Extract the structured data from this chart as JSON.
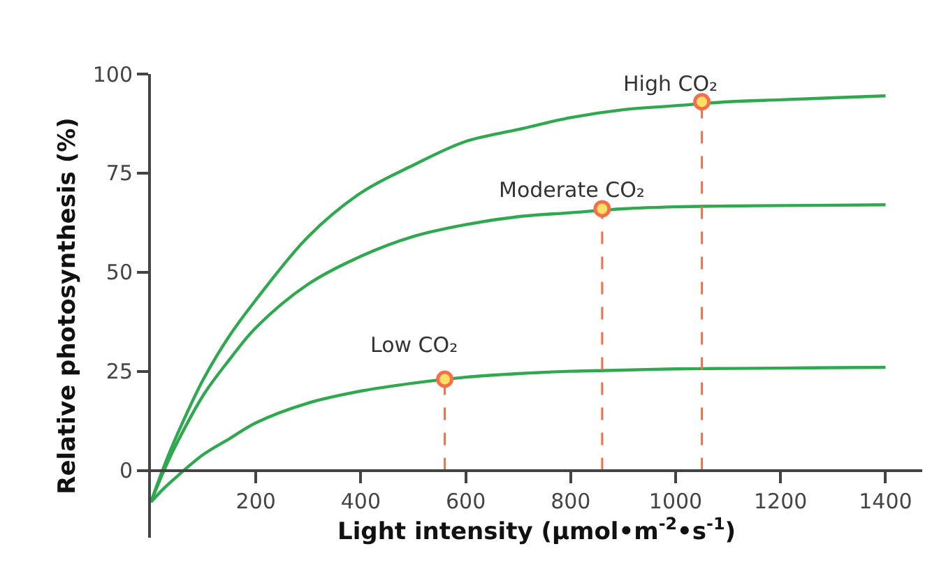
{
  "chart_data": {
    "type": "line",
    "xlabel": "Light intensity (µmol•m$^{-2}$•s$^{-1}$)",
    "ylabel": "Relative photosynthesis (%)",
    "xlim": [
      0,
      1470
    ],
    "ylim": [
      -17,
      100
    ],
    "xticks": [
      200,
      400,
      600,
      800,
      1000,
      1200,
      1400
    ],
    "yticks": [
      0,
      25,
      50,
      75,
      100
    ],
    "marker": "none",
    "line_style": "solid",
    "series": [
      {
        "color": "#2fa84f",
        "x": [
          0,
          25,
          50,
          100,
          150,
          200,
          300,
          400,
          500,
          600,
          700,
          800,
          900,
          1000,
          1100,
          1200,
          1300,
          1400
        ],
        "values": [
          -8,
          1,
          9,
          23,
          34,
          43,
          59,
          70,
          77,
          83,
          86,
          89,
          91,
          92,
          93,
          93.5,
          94,
          94.5
        ]
      },
      {
        "color": "#2fa84f",
        "x": [
          0,
          25,
          50,
          100,
          150,
          200,
          300,
          400,
          500,
          600,
          700,
          800,
          900,
          1000,
          1100,
          1200,
          1300,
          1400
        ],
        "values": [
          -8,
          0,
          7,
          19,
          28,
          36,
          47,
          54,
          59,
          62,
          64,
          65,
          66,
          66.5,
          66.7,
          66.8,
          66.9,
          67
        ]
      },
      {
        "color": "#2fa84f",
        "x": [
          0,
          25,
          50,
          100,
          150,
          200,
          300,
          400,
          500,
          600,
          700,
          800,
          900,
          1000,
          1100,
          1200,
          1300,
          1400
        ],
        "values": [
          -8,
          -4.5,
          -1.5,
          4,
          8,
          12,
          17,
          20,
          22,
          23.5,
          24.4,
          25,
          25.3,
          25.6,
          25.7,
          25.8,
          25.9,
          26
        ]
      },
      {
        "type": "lollipop",
        "color": "#f5704a",
        "line_style": "dashed",
        "marker": "circle",
        "x": [
          560,
          860,
          1050
        ],
        "values": [
          23,
          66,
          93
        ]
      }
    ],
    "annotations": [
      "Low CO₂",
      "Moderate CO₂",
      "High CO₂"
    ]
  }
}
